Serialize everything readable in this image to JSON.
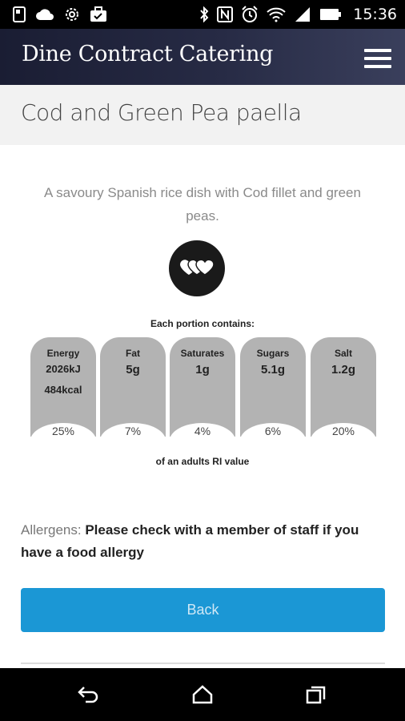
{
  "status_bar": {
    "time": "15:36",
    "left_icons": [
      "sim-icon",
      "cloud-icon",
      "settings-cog-icon",
      "briefcase-icon"
    ],
    "right_icons": [
      "bluetooth-icon",
      "nfc-icon",
      "alarm-icon",
      "wifi-icon",
      "signal-icon",
      "battery-icon"
    ]
  },
  "header": {
    "app_title": "Dine Contract Catering",
    "menu_icon": "hamburger-menu-icon"
  },
  "page": {
    "title": "Cod and Green Pea paella",
    "description": "A savoury Spanish rice dish with Cod fillet and green peas.",
    "logo_icon": "hearts-logo-icon"
  },
  "nutrition": {
    "heading": "Each portion contains:",
    "tiles": [
      {
        "name": "Energy",
        "value": "2026kJ",
        "value2": "484kcal",
        "percent": "25%"
      },
      {
        "name": "Fat",
        "value": "5g",
        "percent": "7%"
      },
      {
        "name": "Saturates",
        "value": "1g",
        "percent": "4%"
      },
      {
        "name": "Sugars",
        "value": "5.1g",
        "percent": "6%"
      },
      {
        "name": "Salt",
        "value": "1.2g",
        "percent": "20%"
      }
    ],
    "ri_text": "of an adults RI value"
  },
  "allergens": {
    "label": "Allergens: ",
    "note": "Please check with a member of staff if you have a food allergy"
  },
  "back_button": {
    "label": "Back"
  },
  "nav_bar": {
    "icons": [
      "back-nav-icon",
      "home-nav-icon",
      "recents-nav-icon"
    ]
  },
  "colors": {
    "header_bg": "#272b45",
    "title_band": "#f2f2f2",
    "tile_grey": "#b3b3b3",
    "button_blue": "#1b97d5"
  }
}
